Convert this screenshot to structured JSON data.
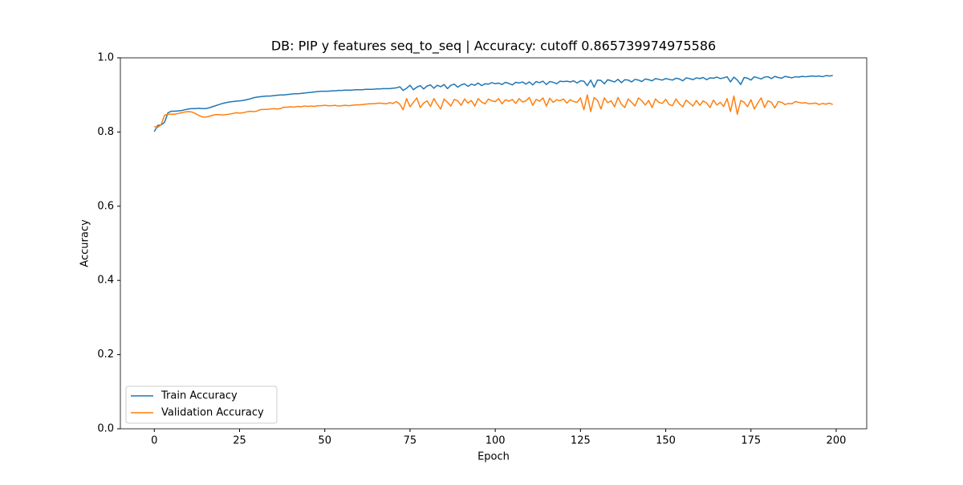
{
  "chart_data": {
    "type": "line",
    "title": "DB: PIP y features seq_to_seq | Accuracy: cutoff 0.865739974975586",
    "xlabel": "Epoch",
    "ylabel": "Accuracy",
    "x": [
      0,
      1,
      2,
      3,
      4,
      5,
      6,
      7,
      8,
      9,
      10,
      11,
      12,
      13,
      14,
      15,
      16,
      17,
      18,
      19,
      20,
      21,
      22,
      23,
      24,
      25,
      26,
      27,
      28,
      29,
      30,
      31,
      32,
      33,
      34,
      35,
      36,
      37,
      38,
      39,
      40,
      41,
      42,
      43,
      44,
      45,
      46,
      47,
      48,
      49,
      50,
      51,
      52,
      53,
      54,
      55,
      56,
      57,
      58,
      59,
      60,
      61,
      62,
      63,
      64,
      65,
      66,
      67,
      68,
      69,
      70,
      71,
      72,
      73,
      74,
      75,
      76,
      77,
      78,
      79,
      80,
      81,
      82,
      83,
      84,
      85,
      86,
      87,
      88,
      89,
      90,
      91,
      92,
      93,
      94,
      95,
      96,
      97,
      98,
      99,
      100,
      101,
      102,
      103,
      104,
      105,
      106,
      107,
      108,
      109,
      110,
      111,
      112,
      113,
      114,
      115,
      116,
      117,
      118,
      119,
      120,
      121,
      122,
      123,
      124,
      125,
      126,
      127,
      128,
      129,
      130,
      131,
      132,
      133,
      134,
      135,
      136,
      137,
      138,
      139,
      140,
      141,
      142,
      143,
      144,
      145,
      146,
      147,
      148,
      149,
      150,
      151,
      152,
      153,
      154,
      155,
      156,
      157,
      158,
      159,
      160,
      161,
      162,
      163,
      164,
      165,
      166,
      167,
      168,
      169,
      170,
      171,
      172,
      173,
      174,
      175,
      176,
      177,
      178,
      179,
      180,
      181,
      182,
      183,
      184,
      185,
      186,
      187,
      188,
      189,
      190,
      191,
      192,
      193,
      194,
      195,
      196,
      197,
      198,
      199
    ],
    "series": [
      {
        "name": "Train Accuracy",
        "color": "#1f77b4",
        "values": [
          0.801,
          0.818,
          0.819,
          0.826,
          0.852,
          0.856,
          0.856,
          0.857,
          0.858,
          0.86,
          0.862,
          0.863,
          0.863,
          0.864,
          0.863,
          0.863,
          0.865,
          0.868,
          0.871,
          0.874,
          0.877,
          0.879,
          0.881,
          0.882,
          0.883,
          0.884,
          0.885,
          0.887,
          0.889,
          0.892,
          0.894,
          0.895,
          0.896,
          0.897,
          0.897,
          0.898,
          0.899,
          0.9,
          0.9,
          0.901,
          0.902,
          0.903,
          0.903,
          0.904,
          0.905,
          0.906,
          0.907,
          0.908,
          0.909,
          0.91,
          0.91,
          0.91,
          0.911,
          0.911,
          0.912,
          0.912,
          0.913,
          0.913,
          0.913,
          0.914,
          0.914,
          0.914,
          0.915,
          0.915,
          0.915,
          0.916,
          0.916,
          0.917,
          0.917,
          0.917,
          0.918,
          0.919,
          0.922,
          0.912,
          0.918,
          0.926,
          0.914,
          0.921,
          0.925,
          0.916,
          0.924,
          0.927,
          0.918,
          0.926,
          0.922,
          0.928,
          0.917,
          0.926,
          0.929,
          0.921,
          0.927,
          0.93,
          0.923,
          0.929,
          0.926,
          0.932,
          0.925,
          0.93,
          0.929,
          0.933,
          0.93,
          0.932,
          0.928,
          0.934,
          0.931,
          0.927,
          0.934,
          0.932,
          0.935,
          0.929,
          0.935,
          0.927,
          0.936,
          0.933,
          0.937,
          0.928,
          0.936,
          0.934,
          0.93,
          0.937,
          0.936,
          0.937,
          0.935,
          0.938,
          0.932,
          0.938,
          0.937,
          0.925,
          0.94,
          0.921,
          0.94,
          0.939,
          0.93,
          0.941,
          0.938,
          0.935,
          0.942,
          0.933,
          0.941,
          0.94,
          0.935,
          0.942,
          0.94,
          0.936,
          0.943,
          0.941,
          0.938,
          0.944,
          0.942,
          0.94,
          0.944,
          0.942,
          0.94,
          0.945,
          0.943,
          0.938,
          0.946,
          0.944,
          0.941,
          0.946,
          0.944,
          0.947,
          0.941,
          0.946,
          0.945,
          0.948,
          0.944,
          0.946,
          0.949,
          0.935,
          0.948,
          0.94,
          0.928,
          0.947,
          0.945,
          0.94,
          0.949,
          0.946,
          0.943,
          0.948,
          0.949,
          0.944,
          0.95,
          0.947,
          0.945,
          0.95,
          0.948,
          0.946,
          0.949,
          0.948,
          0.95,
          0.949,
          0.95,
          0.951,
          0.95,
          0.951,
          0.949,
          0.952,
          0.951,
          0.952
        ]
      },
      {
        "name": "Validation Accuracy",
        "color": "#ff7f0e",
        "values": [
          0.815,
          0.812,
          0.82,
          0.845,
          0.848,
          0.848,
          0.848,
          0.85,
          0.852,
          0.854,
          0.855,
          0.854,
          0.85,
          0.845,
          0.841,
          0.84,
          0.842,
          0.845,
          0.847,
          0.847,
          0.846,
          0.847,
          0.848,
          0.85,
          0.852,
          0.851,
          0.852,
          0.854,
          0.856,
          0.855,
          0.856,
          0.86,
          0.861,
          0.861,
          0.862,
          0.863,
          0.862,
          0.863,
          0.867,
          0.867,
          0.868,
          0.867,
          0.869,
          0.868,
          0.87,
          0.869,
          0.87,
          0.869,
          0.871,
          0.871,
          0.872,
          0.871,
          0.871,
          0.872,
          0.87,
          0.871,
          0.872,
          0.871,
          0.872,
          0.873,
          0.873,
          0.874,
          0.875,
          0.876,
          0.876,
          0.877,
          0.878,
          0.877,
          0.876,
          0.879,
          0.877,
          0.882,
          0.875,
          0.86,
          0.89,
          0.868,
          0.88,
          0.892,
          0.866,
          0.878,
          0.884,
          0.869,
          0.89,
          0.875,
          0.862,
          0.889,
          0.88,
          0.87,
          0.888,
          0.884,
          0.872,
          0.889,
          0.878,
          0.885,
          0.87,
          0.89,
          0.881,
          0.876,
          0.889,
          0.884,
          0.882,
          0.89,
          0.876,
          0.887,
          0.883,
          0.888,
          0.877,
          0.89,
          0.881,
          0.884,
          0.893,
          0.872,
          0.888,
          0.883,
          0.892,
          0.87,
          0.891,
          0.88,
          0.887,
          0.884,
          0.889,
          0.878,
          0.887,
          0.882,
          0.88,
          0.892,
          0.86,
          0.9,
          0.855,
          0.893,
          0.885,
          0.862,
          0.892,
          0.879,
          0.884,
          0.868,
          0.893,
          0.875,
          0.866,
          0.889,
          0.88,
          0.87,
          0.892,
          0.884,
          0.873,
          0.885,
          0.866,
          0.889,
          0.88,
          0.877,
          0.888,
          0.874,
          0.871,
          0.889,
          0.876,
          0.868,
          0.886,
          0.878,
          0.87,
          0.885,
          0.872,
          0.884,
          0.878,
          0.866,
          0.886,
          0.873,
          0.88,
          0.869,
          0.89,
          0.855,
          0.897,
          0.848,
          0.885,
          0.88,
          0.868,
          0.887,
          0.862,
          0.878,
          0.892,
          0.866,
          0.884,
          0.88,
          0.865,
          0.882,
          0.88,
          0.874,
          0.877,
          0.876,
          0.882,
          0.88,
          0.878,
          0.879,
          0.876,
          0.877,
          0.878,
          0.874,
          0.877,
          0.875,
          0.878,
          0.874
        ]
      }
    ],
    "xlim": [
      -9.95,
      208.95
    ],
    "xticks": [
      0,
      25,
      50,
      75,
      100,
      125,
      150,
      175,
      200
    ],
    "ylim": [
      0,
      1
    ],
    "yticks": [
      {
        "value": 0,
        "label": "0.0"
      },
      {
        "value": 0.2,
        "label": "0.2"
      },
      {
        "value": 0.4,
        "label": "0.4"
      },
      {
        "value": 0.6,
        "label": "0.6"
      },
      {
        "value": 0.8,
        "label": "0.8"
      },
      {
        "value": 1,
        "label": "1.0"
      }
    ],
    "grid": false,
    "legend": "lower left"
  }
}
